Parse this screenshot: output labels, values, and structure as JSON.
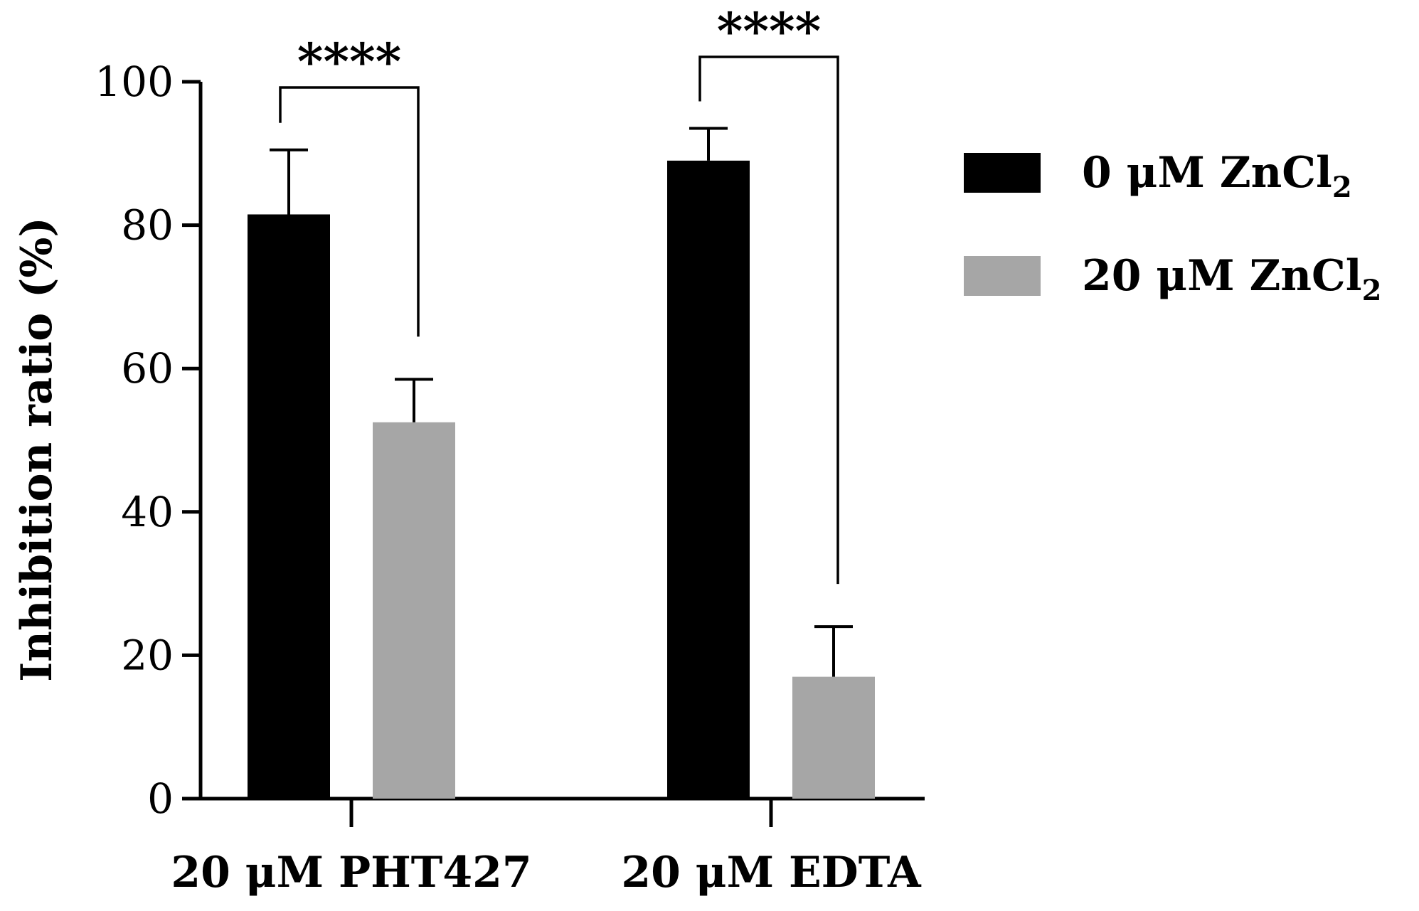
{
  "chart_data": {
    "type": "bar",
    "ylabel": "Inhibition ratio (%)",
    "xlabel": "",
    "ylim": [
      0,
      100
    ],
    "yticks": [
      0,
      20,
      40,
      60,
      80,
      100
    ],
    "categories": [
      "20 μM PHT427",
      "20 μM EDTA"
    ],
    "series": [
      {
        "name": "0 μM ZnCl₂",
        "legend_base": "0 μM ZnCl",
        "legend_sub": "2",
        "color": "#000000",
        "values": [
          81.5,
          89
        ],
        "errors": [
          9,
          4.5
        ]
      },
      {
        "name": "20 μM ZnCl₂",
        "legend_base": "20 μM ZnCl",
        "legend_sub": "2",
        "color": "#a6a6a6",
        "values": [
          52.5,
          17
        ],
        "errors": [
          6,
          7
        ]
      }
    ],
    "significance": [
      {
        "category_index": 0,
        "label": "****"
      },
      {
        "category_index": 1,
        "label": "****"
      }
    ],
    "grid": false,
    "legend_position": "right"
  }
}
